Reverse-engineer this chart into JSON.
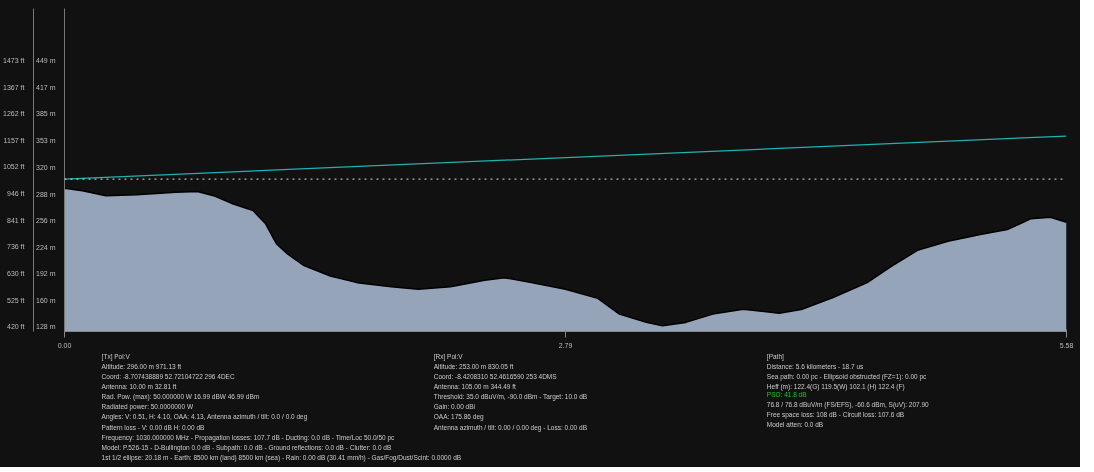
{
  "chart_data": {
    "type": "area",
    "xlim": [
      0,
      5.58
    ],
    "xticks": [
      {
        "value": 0,
        "label": "0.00"
      },
      2.79,
      {
        "value": 5.58,
        "label": "5.58"
      }
    ],
    "ylim": [
      122,
      512
    ],
    "yticks": [
      {
        "value": 128,
        "label": "128 m"
      },
      {
        "value": 160,
        "label": "160 m"
      },
      {
        "value": 192,
        "label": "192 m"
      },
      {
        "value": 224,
        "label": "224 m"
      },
      {
        "value": 256,
        "label": "256 m"
      },
      {
        "value": 288,
        "label": "288 m"
      },
      {
        "value": 320,
        "label": "320 m"
      },
      {
        "value": 353,
        "label": "353 m"
      },
      {
        "value": 385,
        "label": "385 m"
      },
      {
        "value": 417,
        "label": "417 m"
      },
      {
        "value": 449,
        "label": "449 m"
      }
    ],
    "y2lim": [
      400.3,
      1679.8
    ],
    "y2ticks": [
      {
        "value": 420,
        "label": "420 ft"
      },
      {
        "value": 525,
        "label": "525 ft"
      },
      {
        "value": 630,
        "label": "630 ft"
      },
      {
        "value": 736,
        "label": "736 ft"
      },
      {
        "value": 841,
        "label": "841 ft"
      },
      {
        "value": 946,
        "label": "946 ft"
      },
      {
        "value": 1052,
        "label": "1052 ft"
      },
      {
        "value": 1157,
        "label": "1157 ft"
      },
      {
        "value": 1262,
        "label": "1262 ft"
      },
      {
        "value": 1367,
        "label": "1367 ft"
      },
      {
        "value": 1473,
        "label": "1473 ft"
      }
    ],
    "grid": false,
    "series": [
      {
        "color": "#95a4b8",
        "x": [
          0,
          0.1,
          0.23,
          0.4,
          0.62,
          0.74,
          0.83,
          0.94,
          1.05,
          1.12,
          1.18,
          1.24,
          1.33,
          1.48,
          1.63,
          1.82,
          1.97,
          2.15,
          2.34,
          2.45,
          2.6,
          2.79,
          2.97,
          3.09,
          3.24,
          3.33,
          3.46,
          3.61,
          3.78,
          3.98,
          4.11,
          4.28,
          4.47,
          4.6,
          4.75,
          4.92,
          5.1,
          5.25,
          5.38,
          5.49,
          5.58
        ],
        "values": [
          295,
          292,
          286,
          287,
          290,
          291,
          286,
          276,
          268,
          252,
          228,
          216,
          202,
          189,
          181,
          176,
          173,
          176,
          184,
          187,
          181,
          173,
          162,
          143,
          133,
          129,
          133,
          143,
          149,
          144,
          149,
          163,
          181,
          200,
          220,
          231,
          239,
          245,
          258,
          260,
          254
        ]
      },
      {
        "type": "line",
        "color": "#20b2b2",
        "x": [
          0,
          5.58
        ],
        "values": [
          306,
          358
        ]
      }
    ],
    "ref_lines": [
      {
        "axis": "y",
        "value": 306,
        "color": "#dddddd",
        "line_style": "dotted"
      }
    ],
    "annotations": [
      "[Tx] Pol:V\nAltitude: 296.00 m 971.13 ft\nCoord: -8.707438889 52.72104722 296 4DEC\nAntenna: 10.00 m 32.81 ft\nRad. Pow. (max): 50.000000 W 16.99 dBW 46.99 dBm\nRadiated power: 50.0000000 W\nAngles: V: 0.51, H: 4.10, OAA: 4.13, Antenna azimuth / tilt: 0.0 / 0.0 deg\nPattern loss - V: 0.00 dB H: 0.00 dB\nFrequency: 1030.000000 MHz - Propagation losses: 107.7 dB - Ducting: 0.0 dB - Time/Loc 50.0/50 pc\nModel: P.526-15 - D-Bullington 0.0 dB - Subpath: 0.0 dB - Ground reflections: 0.0 dB - Clutter: 0.0 dB\n1st 1/2 ellipse: 20.18 m - Earth: 8500 km (land) 8500 km (sea) - Rain: 0.00 dB (30.41 mm/h) - Gas/Fog/Dust/Scint: 0.0000 dB",
      "[Rx] Pol:V\nAltitude: 253.00 m 830.05 ft\nCoord: -8.4208310 52.4616590 253 4DMS\nAntenna: 105.00 m 344.49 ft\nThreshold: 35.0 dBuV/m, -90.0 dBm - Target: 10.0 dB\nGain: 0.00 dBi\nOAA: 175.86 deg\nAntenna azimuth / tilt: 0.00 / 0.00 deg - Loss: 0.00 dB",
      "[Path]\nDistance: 5.6 kilometers - 18.7 us\nSea path: 0.00 pc - Ellipsoid obstructed (FZ=1): 0.00 pc\nHeff (m): 122.4(G) 119.5(W) 102.1 (H) 122.4 (F)",
      "PSO: 41.8 dB",
      "76.8 / 76.8 dBuV/m (FS/EFS), -60.6 dBm, S(uV): 207.90\nFree space loss: 108 dB - Circuit loss: 107.6 dB\nModel atten: 0.0 dB"
    ]
  }
}
